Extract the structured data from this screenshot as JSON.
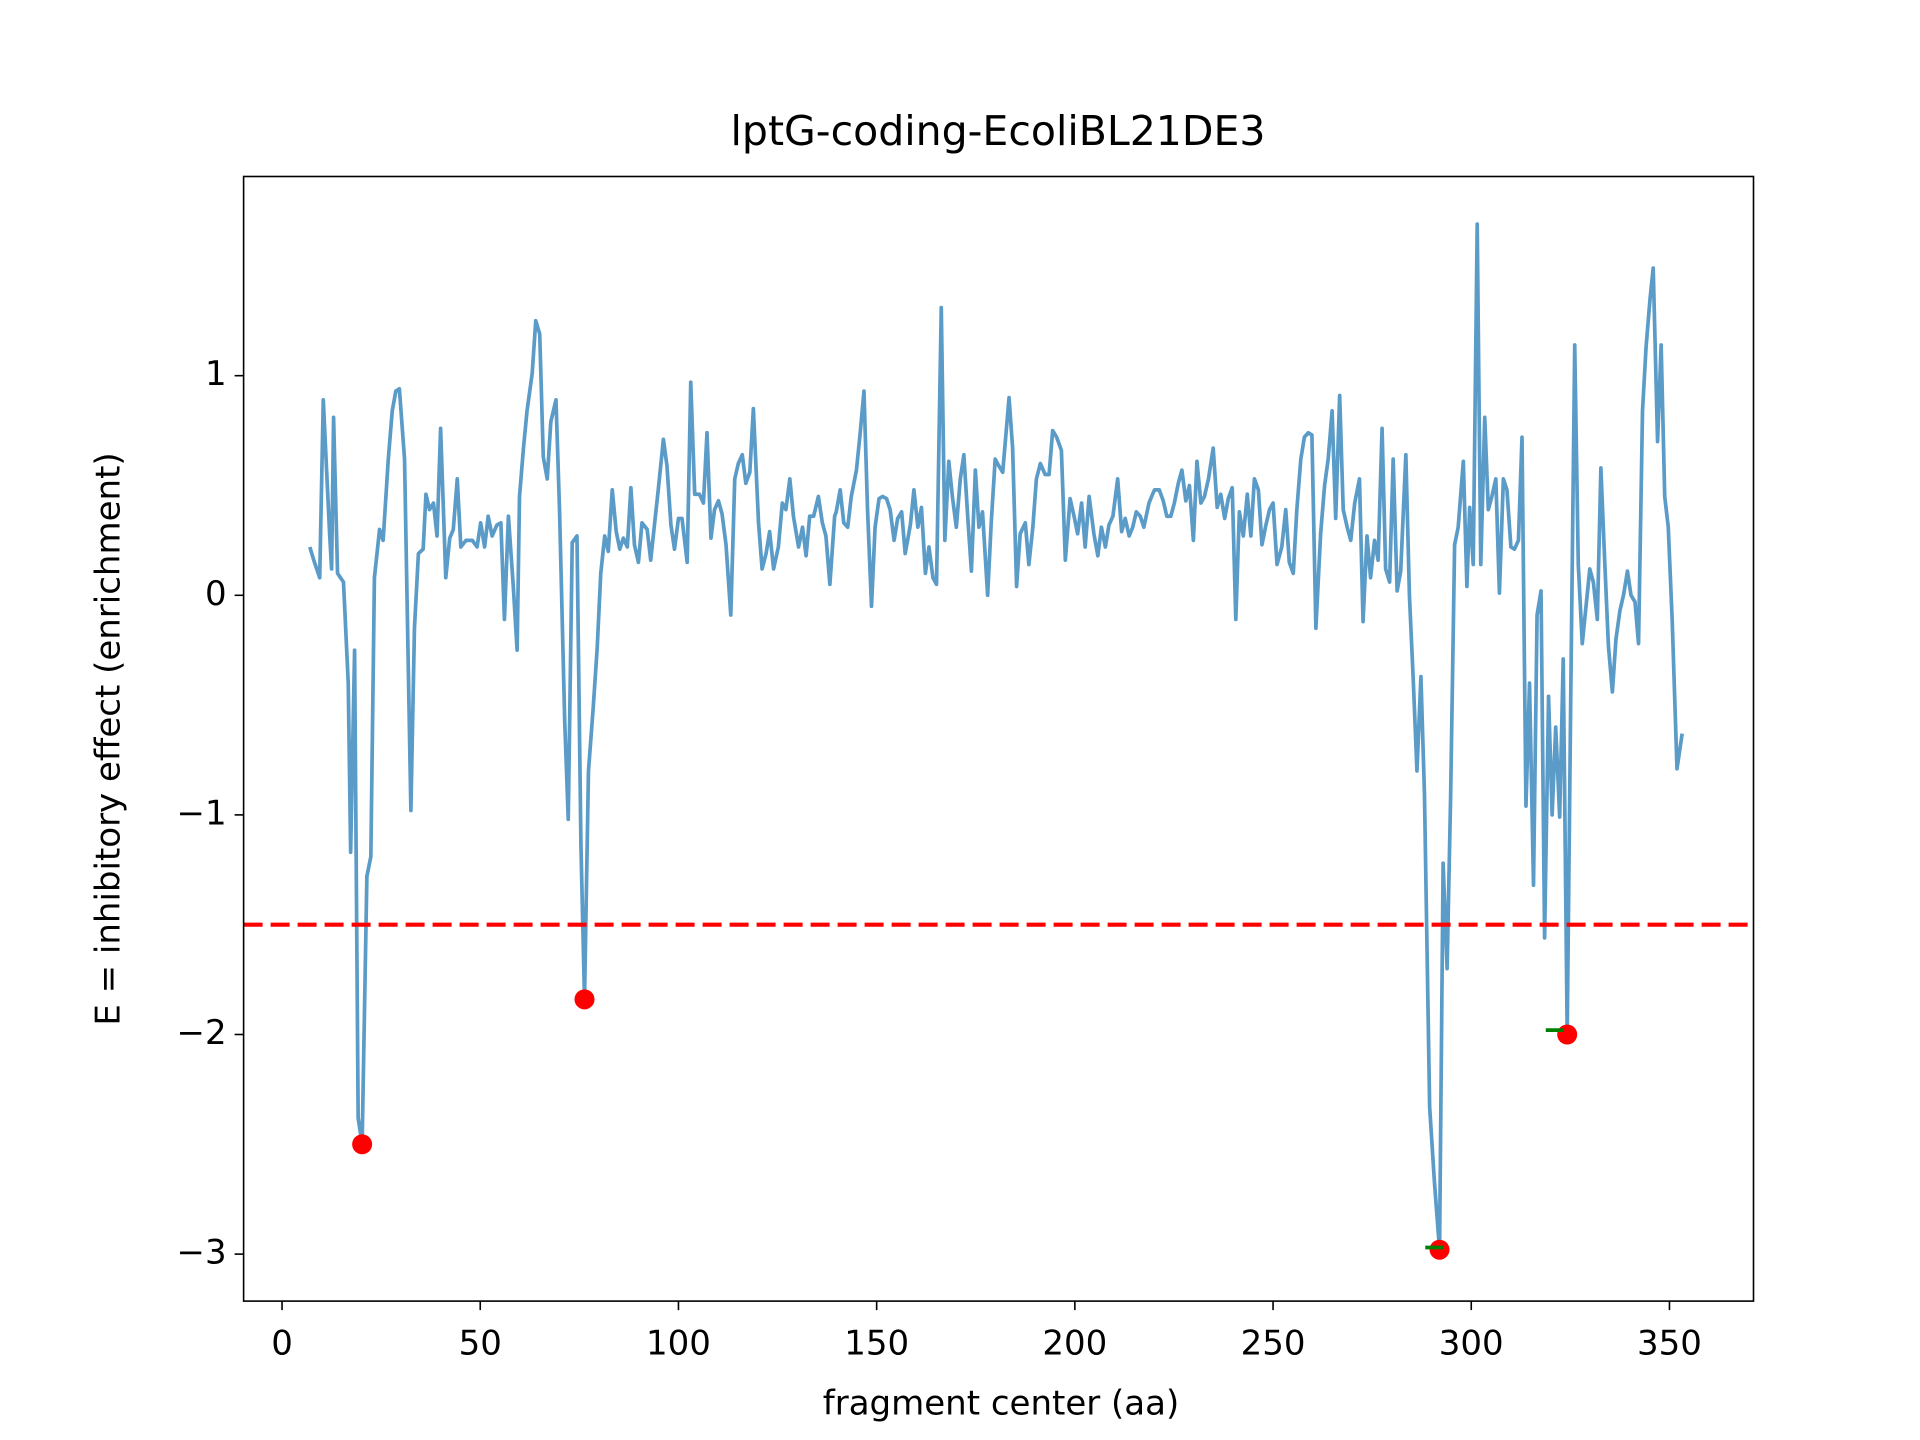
{
  "chart_data": {
    "type": "line",
    "title": "lptG-coding-EcoliBL21DE3",
    "xlabel": "fragment center (aa)",
    "ylabel": "E = inhibitory effect (enrichment)",
    "xlim": [
      -9.7,
      371.2
    ],
    "ylim": [
      -3.214,
      1.907
    ],
    "xticks": [
      0,
      50,
      100,
      150,
      200,
      250,
      300,
      350
    ],
    "yticks": [
      {
        "value": -3,
        "label": "−3"
      },
      {
        "value": -2,
        "label": "−2"
      },
      {
        "value": -1,
        "label": "−1"
      },
      0,
      1
    ],
    "series": [
      {
        "color": "#5b9bc8",
        "x": [
          7,
          8,
          9.5,
          10.4,
          12,
          12.5,
          13,
          14,
          15.5,
          16.7,
          17.3,
          18.3,
          19.2,
          20.2,
          21.4,
          22.4,
          23.3,
          24.6,
          25.5,
          26.8,
          27.8,
          28.7,
          29.6,
          30.9,
          32.5,
          33.4,
          34.4,
          35.6,
          36.3,
          37.2,
          38.2,
          39.1,
          40,
          41.3,
          42.3,
          43.2,
          44.2,
          45.1,
          46.4,
          48,
          49.2,
          50.1,
          51.1,
          52,
          53,
          54.2,
          55.2,
          56.1,
          57.1,
          58.3,
          59.3,
          59.9,
          60.9,
          61.8,
          63.1,
          64,
          65,
          65.9,
          66.9,
          67.8,
          69.1,
          70,
          71.3,
          72.2,
          73.2,
          74.4,
          75.4,
          76.3,
          77.3,
          78.5,
          79.5,
          80.4,
          81.4,
          82.3,
          83.3,
          84.3,
          85.2,
          86.1,
          87.1,
          88,
          88.9,
          89.9,
          90.8,
          92.1,
          93,
          94,
          94.9,
          96.2,
          97.1,
          98.1,
          99,
          100,
          100.9,
          102.2,
          103.1,
          104.1,
          105.3,
          106.3,
          107.2,
          108.2,
          109.1,
          110.1,
          111,
          112,
          113.2,
          114.2,
          115.1,
          116.1,
          117,
          118,
          118.9,
          120.2,
          121.1,
          122.1,
          123,
          124,
          125.2,
          126.2,
          127.1,
          128.1,
          129,
          130.3,
          131.3,
          132.2,
          133.1,
          134.1,
          135.3,
          136.3,
          137.2,
          138.2,
          139.4,
          139.8,
          140.8,
          141.7,
          142.7,
          143.6,
          144.9,
          145.8,
          146.8,
          147.7,
          148.7,
          149.6,
          150.6,
          151.5,
          152.5,
          153.4,
          154.4,
          155.3,
          156.3,
          157.2,
          158.5,
          159.4,
          160.4,
          161.3,
          162.3,
          163.2,
          164.2,
          165.1,
          166.3,
          167.2,
          168.2,
          169.1,
          170.1,
          171.1,
          172,
          173,
          173.9,
          174.9,
          175.8,
          176.7,
          178,
          178.9,
          179.9,
          180.8,
          181.8,
          183.4,
          184.3,
          185.3,
          186.2,
          187.5,
          188.4,
          189.4,
          190.3,
          191.3,
          192.5,
          193.5,
          194.4,
          195.4,
          196.6,
          197.6,
          198.8,
          199.8,
          200.7,
          201.7,
          202.6,
          203.6,
          204.8,
          205.8,
          206.7,
          207.7,
          208.6,
          209.6,
          210.8,
          211.8,
          212.7,
          213.7,
          214.6,
          215.5,
          216.5,
          217.4,
          218.7,
          219.6,
          220.1,
          221.3,
          222.3,
          223.2,
          224.2,
          225.1,
          226.1,
          227,
          228,
          228.9,
          229.9,
          230.8,
          231.8,
          232.7,
          233.7,
          234.9,
          235.9,
          236.8,
          237.8,
          238.7,
          239.7,
          240.6,
          241.5,
          242.5,
          243.5,
          244.4,
          245.3,
          246.3,
          247.2,
          248.2,
          249.1,
          250,
          251,
          252.2,
          253.2,
          254.1,
          255.1,
          256,
          257,
          257.9,
          258.9,
          259.8,
          260.8,
          262,
          263,
          263.9,
          264.9,
          265.8,
          266.8,
          267.7,
          268.7,
          269.6,
          270.6,
          271.8,
          272.7,
          273.7,
          274.6,
          275.6,
          276.5,
          277.5,
          278.4,
          279.4,
          280.3,
          281.3,
          282.2,
          283.5,
          284.4,
          285.4,
          286.3,
          287.3,
          288.2,
          289.5,
          290.7,
          292,
          292.9,
          293.9,
          294.8,
          295.8,
          296.7,
          298,
          298.9,
          299.6,
          300.5,
          301.5,
          302.4,
          303.4,
          304.3,
          305.2,
          306.2,
          307.1,
          308.1,
          309,
          310,
          310.9,
          311.9,
          312.8,
          313.8,
          314.7,
          315.7,
          316.6,
          317.6,
          318.5,
          319.5,
          320.4,
          321.3,
          322.3,
          323.2,
          324.2,
          325.1,
          326.1,
          327,
          328,
          328.9,
          329.9,
          330.8,
          331.8,
          332.7,
          333.7,
          334.6,
          335.6,
          336.5,
          337.5,
          338.4,
          339.4,
          340.3,
          341.3,
          342.2,
          343.2,
          344.1,
          345.1,
          345.9,
          347,
          347.9,
          348.8,
          349.7,
          350.7,
          351.9,
          353.2
        ],
        "values": [
          0.22,
          0.16,
          0.08,
          0.89,
          0.28,
          0.12,
          0.81,
          0.1,
          0.06,
          -0.4,
          -1.17,
          -0.25,
          -2.38,
          -2.5,
          -1.28,
          -1.19,
          0.08,
          0.3,
          0.25,
          0.62,
          0.84,
          0.93,
          0.94,
          0.62,
          -0.98,
          -0.15,
          0.19,
          0.21,
          0.46,
          0.39,
          0.42,
          0.27,
          0.76,
          0.08,
          0.26,
          0.3,
          0.53,
          0.22,
          0.25,
          0.25,
          0.22,
          0.33,
          0.22,
          0.36,
          0.27,
          0.32,
          0.33,
          -0.11,
          0.36,
          0.05,
          -0.25,
          0.45,
          0.67,
          0.84,
          1.01,
          1.25,
          1.19,
          0.63,
          0.53,
          0.79,
          0.89,
          0.39,
          -0.57,
          -1.02,
          0.24,
          0.27,
          -1.14,
          -1.84,
          -0.8,
          -0.51,
          -0.24,
          0.1,
          0.27,
          0.2,
          0.48,
          0.29,
          0.21,
          0.26,
          0.22,
          0.49,
          0.23,
          0.15,
          0.33,
          0.3,
          0.16,
          0.33,
          0.48,
          0.71,
          0.59,
          0.32,
          0.21,
          0.35,
          0.35,
          0.15,
          0.97,
          0.46,
          0.46,
          0.42,
          0.74,
          0.26,
          0.39,
          0.43,
          0.37,
          0.23,
          -0.09,
          0.53,
          0.6,
          0.64,
          0.51,
          0.56,
          0.85,
          0.33,
          0.12,
          0.19,
          0.29,
          0.12,
          0.22,
          0.42,
          0.39,
          0.53,
          0.36,
          0.22,
          0.31,
          0.18,
          0.36,
          0.36,
          0.45,
          0.33,
          0.27,
          0.05,
          0.36,
          0.38,
          0.48,
          0.33,
          0.31,
          0.45,
          0.57,
          0.73,
          0.93,
          0.39,
          -0.05,
          0.31,
          0.44,
          0.45,
          0.44,
          0.39,
          0.25,
          0.35,
          0.38,
          0.19,
          0.32,
          0.48,
          0.31,
          0.4,
          0.1,
          0.22,
          0.08,
          0.05,
          1.31,
          0.25,
          0.61,
          0.45,
          0.31,
          0.53,
          0.64,
          0.35,
          0.11,
          0.57,
          0.31,
          0.38,
          0,
          0.33,
          0.62,
          0.59,
          0.56,
          0.9,
          0.67,
          0.04,
          0.28,
          0.33,
          0.14,
          0.31,
          0.53,
          0.6,
          0.55,
          0.55,
          0.75,
          0.72,
          0.66,
          0.16,
          0.44,
          0.36,
          0.28,
          0.42,
          0.22,
          0.45,
          0.28,
          0.18,
          0.31,
          0.22,
          0.32,
          0.36,
          0.53,
          0.29,
          0.35,
          0.27,
          0.31,
          0.38,
          0.36,
          0.31,
          0.42,
          0.46,
          0.48,
          0.48,
          0.43,
          0.36,
          0.36,
          0.42,
          0.51,
          0.57,
          0.43,
          0.5,
          0.25,
          0.61,
          0.42,
          0.45,
          0.53,
          0.67,
          0.4,
          0.46,
          0.35,
          0.44,
          0.49,
          -0.11,
          0.38,
          0.27,
          0.46,
          0.27,
          0.53,
          0.48,
          0.23,
          0.32,
          0.39,
          0.42,
          0.14,
          0.22,
          0.39,
          0.15,
          0.1,
          0.39,
          0.62,
          0.72,
          0.74,
          0.73,
          -0.15,
          0.28,
          0.5,
          0.62,
          0.84,
          0.35,
          0.91,
          0.39,
          0.31,
          0.25,
          0.42,
          0.53,
          -0.12,
          0.27,
          0.08,
          0.25,
          0.16,
          0.76,
          0.12,
          0.06,
          0.62,
          0.02,
          0.11,
          0.64,
          0,
          -0.4,
          -0.8,
          -0.37,
          -0.91,
          -2.33,
          -2.67,
          -2.98,
          -1.22,
          -1.7,
          -0.91,
          0.23,
          0.31,
          0.61,
          0.04,
          0.4,
          0.14,
          1.69,
          0.14,
          0.81,
          0.39,
          0.45,
          0.53,
          0.01,
          0.53,
          0.48,
          0.22,
          0.21,
          0.25,
          0.72,
          -0.96,
          -0.4,
          -1.32,
          -0.09,
          0.02,
          -1.56,
          -0.46,
          -1,
          -0.6,
          -1.01,
          -0.29,
          -2,
          -0.46,
          1.14,
          0.14,
          -0.22,
          -0.06,
          0.12,
          0.06,
          -0.11,
          0.58,
          0.14,
          -0.23,
          -0.44,
          -0.2,
          -0.07,
          0,
          0.11,
          0,
          -0.03,
          -0.22,
          0.84,
          1.13,
          1.35,
          1.49,
          0.7,
          1.14,
          0.45,
          0.31,
          -0.12,
          -0.79,
          -0.63
        ]
      }
    ],
    "threshold": {
      "value": -1.5,
      "color": "#ff0000",
      "dashed": true
    },
    "highlights": {
      "color": "#ff0000",
      "x": [
        20.2,
        76.3,
        292,
        324.2
      ],
      "values": [
        -2.5,
        -1.84,
        -2.98,
        -2
      ]
    },
    "segments": {
      "color": "#008000",
      "x0": [
        288.4,
        318.8
      ],
      "x1": [
        293.1,
        323.2
      ],
      "values": [
        -2.97,
        -1.98
      ]
    }
  }
}
